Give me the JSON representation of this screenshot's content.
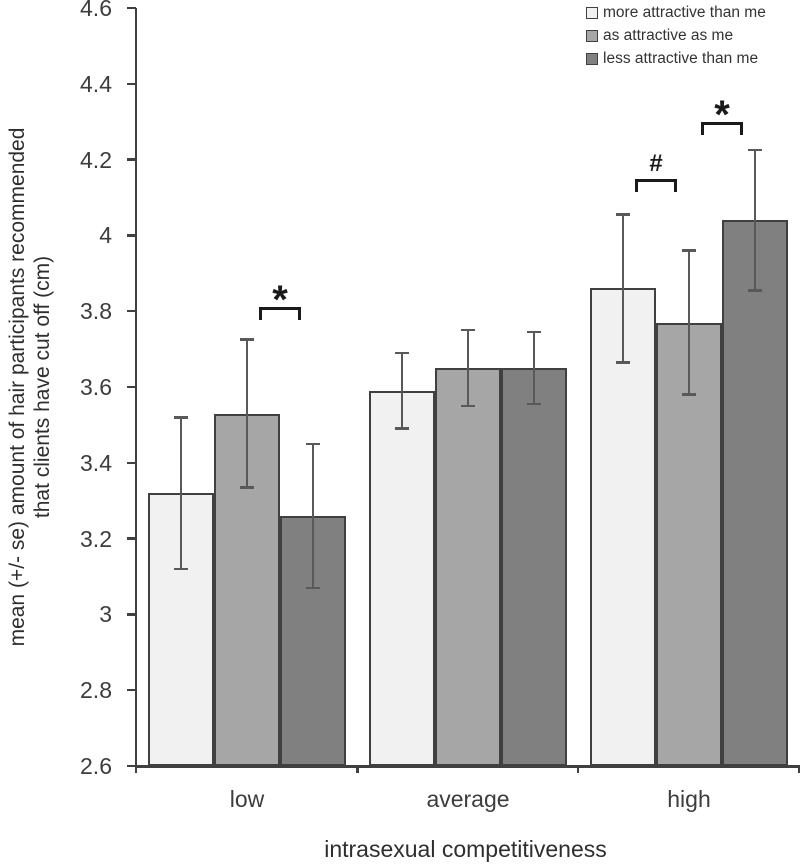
{
  "chart_data": {
    "type": "bar",
    "title": "",
    "xlabel": "intrasexual competitiveness",
    "ylabel_lines": [
      "mean (+/- se) amount of hair participants recommended",
      "that clients have cut off (cm)"
    ],
    "categories": [
      "low",
      "average",
      "high"
    ],
    "series": [
      {
        "name": "more attractive than me",
        "color": "#f1f1f1",
        "values": [
          3.32,
          3.59,
          3.86
        ],
        "se": [
          0.2,
          0.1,
          0.195
        ]
      },
      {
        "name": "as attractive as me",
        "color": "#a6a6a6",
        "values": [
          3.53,
          3.65,
          3.77
        ],
        "se": [
          0.195,
          0.1,
          0.19
        ]
      },
      {
        "name": "less attractive than me",
        "color": "#808080",
        "values": [
          3.26,
          3.65,
          4.04
        ],
        "se": [
          0.19,
          0.095,
          0.185
        ]
      }
    ],
    "ylim": [
      2.6,
      4.6
    ],
    "ytick_step": 0.2,
    "ytick_labels": [
      "2.6",
      "2.8",
      "3",
      "3.2",
      "3.4",
      "3.6",
      "3.8",
      "4",
      "4.2",
      "4.4",
      "4.6"
    ],
    "grid": false,
    "legend_position": "top-right",
    "annotations": [
      {
        "symbol": "*",
        "group_index": 0,
        "between_series": [
          1,
          2
        ],
        "y_value": 3.81
      },
      {
        "symbol": "#",
        "group_index": 2,
        "between_series": [
          0,
          1
        ],
        "y_value": 4.15
      },
      {
        "symbol": "*",
        "group_index": 2,
        "between_series": [
          1,
          2
        ],
        "y_value": 4.3
      }
    ],
    "colors": {
      "axis": "#404040",
      "error_bar": "#595959",
      "bar_border": "#404040",
      "bracket": "#1a1a1a",
      "background": "#ffffff"
    }
  }
}
